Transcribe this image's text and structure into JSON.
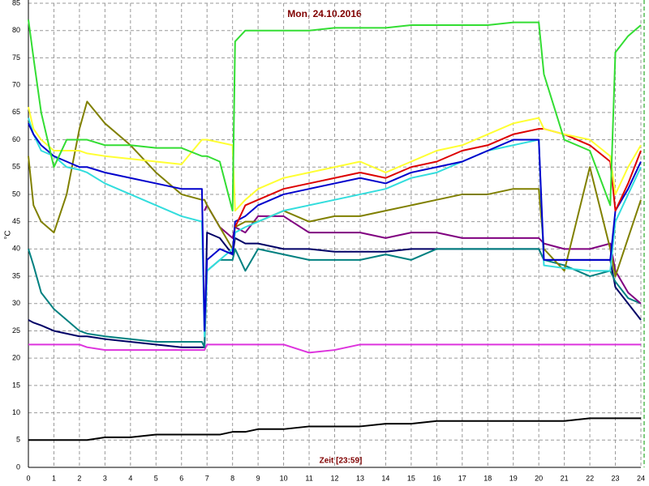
{
  "chart_data": {
    "type": "line",
    "title": "Mon, 24.10.2016",
    "x_label": "Zeit [23:59]",
    "y_label": "°C",
    "x": [
      0,
      0.2,
      0.5,
      1,
      1.5,
      2,
      2.3,
      3,
      4,
      5,
      6,
      6.8,
      6.9,
      7,
      7.5,
      8,
      8.1,
      8.5,
      9,
      10,
      11,
      12,
      13,
      14,
      15,
      16,
      17,
      18,
      19,
      20,
      20.2,
      21,
      22,
      22.8,
      23,
      23.5,
      24
    ],
    "xlim": [
      0,
      24
    ],
    "xticks": [
      0,
      1,
      2,
      3,
      4,
      5,
      6,
      7,
      8,
      9,
      10,
      11,
      12,
      13,
      14,
      15,
      16,
      17,
      18,
      19,
      20,
      21,
      22,
      23,
      24
    ],
    "ylim": [
      0,
      85
    ],
    "yticks": [
      0,
      5,
      10,
      15,
      20,
      25,
      30,
      35,
      40,
      45,
      50,
      55,
      60,
      65,
      70,
      75,
      80,
      85
    ],
    "grid": true,
    "series": [
      {
        "color": "#000000",
        "values": [
          5,
          5,
          5,
          5,
          5,
          5,
          5,
          5.5,
          5.5,
          6,
          6,
          6,
          6,
          6,
          6,
          6.5,
          6.5,
          6.5,
          7,
          7,
          7.5,
          7.5,
          7.5,
          8,
          8,
          8.5,
          8.5,
          8.5,
          8.5,
          8.5,
          8.5,
          8.5,
          9,
          9,
          9,
          9,
          9
        ]
      },
      {
        "color": "#dd33dd",
        "values": [
          22.5,
          22.5,
          22.5,
          22.5,
          22.5,
          22.5,
          22,
          21.5,
          21.5,
          21.5,
          21.5,
          21.5,
          21.5,
          22.5,
          22.5,
          22.5,
          22.5,
          22.5,
          22.5,
          22.5,
          21,
          21.5,
          22.5,
          22.5,
          22.5,
          22.5,
          22.5,
          22.5,
          22.5,
          22.5,
          22.5,
          22.5,
          22.5,
          22.5,
          22.5,
          22.5,
          22.5
        ]
      },
      {
        "color": "#000066",
        "values": [
          27,
          26.5,
          26,
          25,
          24.5,
          24,
          24,
          23.5,
          23,
          22.5,
          22,
          22,
          22,
          43,
          42,
          39,
          42,
          41,
          41,
          40,
          40,
          39.5,
          39.5,
          39.5,
          40,
          40,
          40,
          40,
          40,
          40,
          38,
          38,
          38,
          38,
          33,
          30,
          27
        ]
      },
      {
        "color": "#008080",
        "values": [
          40,
          37,
          32,
          29,
          27,
          25,
          24.5,
          24,
          23.5,
          23,
          23,
          23,
          22,
          36,
          38,
          38,
          40,
          36,
          40,
          39,
          38,
          38,
          38,
          39,
          38,
          40,
          40,
          40,
          40,
          40,
          38,
          37,
          35,
          36,
          34,
          31,
          30
        ]
      },
      {
        "color": "#800080",
        "values": [
          null,
          null,
          null,
          null,
          null,
          null,
          null,
          null,
          null,
          null,
          null,
          null,
          47,
          48,
          44,
          42,
          44,
          43,
          46,
          46,
          43,
          43,
          43,
          42,
          43,
          43,
          42,
          42,
          42,
          42,
          41,
          40,
          40,
          41,
          36,
          32,
          30
        ]
      },
      {
        "color": "#808000",
        "values": [
          57,
          48,
          45,
          43,
          50,
          62,
          67,
          63,
          59,
          54,
          50,
          49,
          49,
          48,
          44,
          40,
          44,
          45,
          45,
          47,
          45,
          46,
          46,
          47,
          48,
          49,
          50,
          50,
          51,
          51,
          40,
          36,
          55,
          40,
          35,
          42,
          49
        ]
      },
      {
        "color": "#33dddd",
        "values": [
          64,
          61,
          58,
          57,
          55,
          54.5,
          54,
          52,
          50,
          48,
          46,
          45,
          24,
          36,
          38,
          40,
          43,
          44,
          45,
          47,
          48,
          49,
          50,
          51,
          53,
          54,
          56,
          58,
          59,
          60,
          37,
          36.5,
          36,
          36,
          45,
          50,
          55
        ]
      },
      {
        "color": "#0000cc",
        "values": [
          63,
          61,
          59,
          57,
          56,
          55,
          55,
          54,
          53,
          52,
          51,
          51,
          25,
          38,
          40,
          39,
          45,
          46,
          48,
          50,
          51,
          52,
          53,
          52,
          54,
          55,
          56,
          58,
          60,
          60,
          38,
          38,
          38,
          38,
          47,
          51,
          56
        ]
      },
      {
        "color": "#dd0000",
        "values": [
          null,
          null,
          null,
          null,
          null,
          null,
          null,
          null,
          null,
          null,
          null,
          null,
          null,
          null,
          null,
          null,
          44,
          48,
          49,
          51,
          52,
          53,
          54,
          53,
          55,
          56,
          58,
          59,
          61,
          62,
          62,
          61,
          59,
          56,
          47,
          52,
          58
        ]
      },
      {
        "color": "#ffff33",
        "values": [
          66,
          62,
          60,
          58,
          58,
          58,
          57.5,
          57,
          56.5,
          56,
          55.5,
          60,
          60,
          60,
          59.5,
          59,
          47,
          49,
          51,
          53,
          54,
          55,
          56,
          54,
          56,
          58,
          59,
          61,
          63,
          64,
          62,
          61,
          60,
          57,
          50,
          55,
          59
        ]
      },
      {
        "color": "#33dd33",
        "values": [
          82,
          75,
          65,
          55,
          60,
          60,
          60,
          59,
          59,
          58.5,
          58.5,
          57,
          57,
          57,
          56,
          47,
          78,
          80,
          80,
          80,
          80,
          80.5,
          80.5,
          80.5,
          81,
          81,
          81,
          81,
          81.5,
          81.5,
          72,
          60,
          58,
          48,
          76,
          79,
          81
        ]
      }
    ]
  }
}
